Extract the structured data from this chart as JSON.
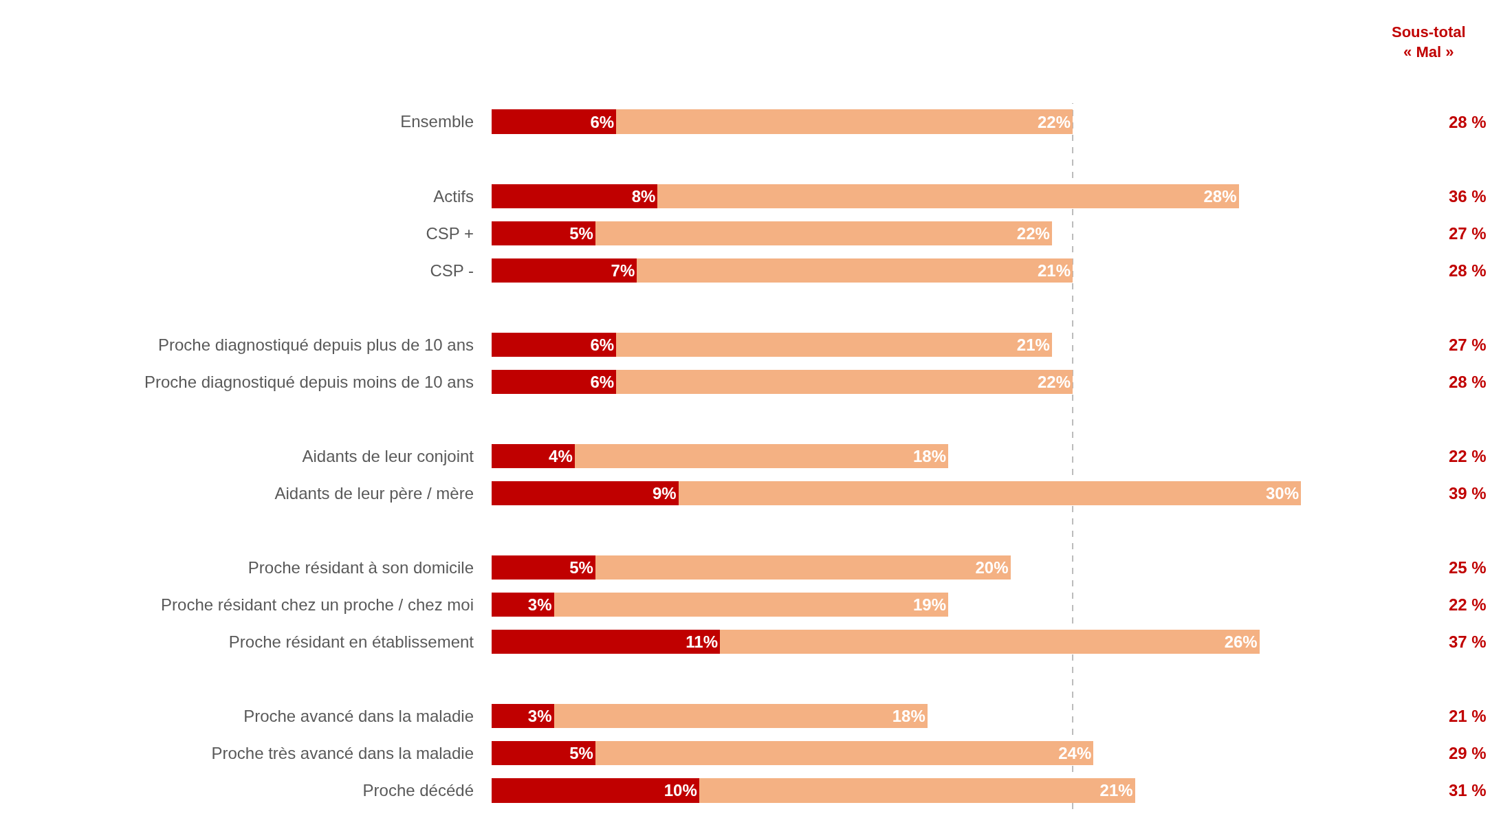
{
  "chart_data": {
    "type": "bar",
    "orientation": "horizontal",
    "stacked": true,
    "categories": [
      "Ensemble",
      null,
      "Actifs",
      "CSP +",
      "CSP -",
      null,
      "Proche diagnostiqué depuis plus de 10 ans",
      "Proche diagnostiqué depuis moins de 10 ans",
      null,
      "Aidants de leur conjoint",
      "Aidants de leur père / mère",
      null,
      "Proche résidant à son domicile",
      "Proche résidant chez un proche / chez moi",
      "Proche résidant en établissement",
      null,
      "Proche avancé dans la maladie",
      "Proche très avancé dans la maladie",
      "Proche décédé"
    ],
    "series": [
      {
        "color": "#c00000",
        "values": [
          6,
          null,
          8,
          5,
          7,
          null,
          6,
          6,
          null,
          4,
          9,
          null,
          5,
          3,
          11,
          null,
          3,
          5,
          10
        ],
        "value_labels": [
          "6%",
          null,
          "8%",
          "5%",
          "7%",
          null,
          "6%",
          "6%",
          null,
          "4%",
          "9%",
          null,
          "5%",
          "3%",
          "11%",
          null,
          "3%",
          "5%",
          "10%"
        ]
      },
      {
        "color": "#f4b183",
        "values": [
          22,
          null,
          28,
          22,
          21,
          null,
          21,
          22,
          null,
          18,
          30,
          null,
          20,
          19,
          26,
          null,
          18,
          24,
          21
        ],
        "value_labels": [
          "22%",
          null,
          "28%",
          "22%",
          "21%",
          null,
          "21%",
          "22%",
          null,
          "18%",
          "30%",
          null,
          "20%",
          "19%",
          "26%",
          null,
          "18%",
          "24%",
          "21%"
        ]
      }
    ],
    "annotations": [
      "Sous-total\n« Mal »",
      "28 %",
      "36 %",
      "27 %",
      "28 %",
      "27 %",
      "28 %",
      "22 %",
      "39 %",
      "25 %",
      "22 %",
      "37 %",
      "21 %",
      "29 %",
      "31 %"
    ],
    "ref_lines": [
      {
        "axis": "x",
        "value": 28,
        "label": null,
        "color": "#a6a6a6",
        "line_style": "dashed"
      }
    ]
  }
}
